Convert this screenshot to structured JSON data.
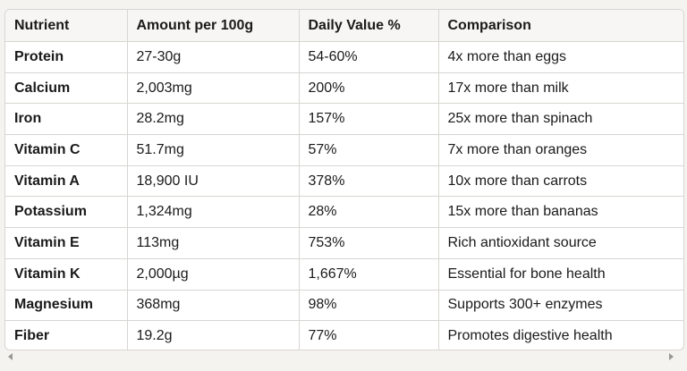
{
  "table": {
    "headers": [
      "Nutrient",
      "Amount per 100g",
      "Daily Value %",
      "Comparison"
    ],
    "rows": [
      [
        "Protein",
        "27-30g",
        "54-60%",
        "4x more than eggs"
      ],
      [
        "Calcium",
        "2,003mg",
        "200%",
        "17x more than milk"
      ],
      [
        "Iron",
        "28.2mg",
        "157%",
        "25x more than spinach"
      ],
      [
        "Vitamin C",
        "51.7mg",
        "57%",
        "7x more than oranges"
      ],
      [
        "Vitamin A",
        "18,900 IU",
        "378%",
        "10x more than carrots"
      ],
      [
        "Potassium",
        "1,324mg",
        "28%",
        "15x more than bananas"
      ],
      [
        "Vitamin E",
        "113mg",
        "753%",
        "Rich antioxidant source"
      ],
      [
        "Vitamin K",
        "2,000µg",
        "1,667%",
        "Essential for bone health"
      ],
      [
        "Magnesium",
        "368mg",
        "98%",
        "Supports 300+ enzymes"
      ],
      [
        "Fiber",
        "19.2g",
        "77%",
        "Promotes digestive health"
      ]
    ]
  },
  "scrollbar": {
    "left_icon": "arrow-left-icon",
    "right_icon": "arrow-right-icon"
  }
}
